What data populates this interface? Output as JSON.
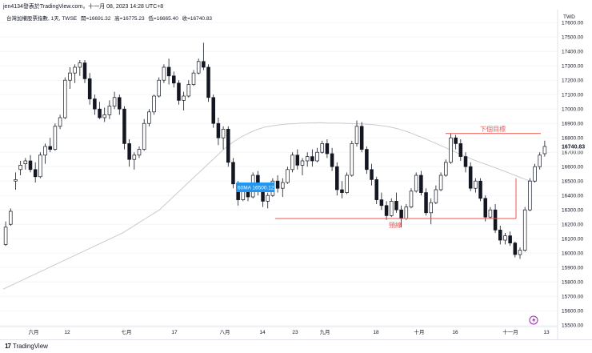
{
  "header": {
    "published_by": "jen4134發表於TradingView.com，十一月 08, 2023 14:28 UTC+8",
    "symbol_line": "台灣加權股票指數, 1天, TWSE",
    "ohlc_labels": {
      "open": "開=16691.32",
      "high": "高=16775.23",
      "low": "低=16665.40",
      "close": "收=16740.83"
    }
  },
  "footer": {
    "brand": "TradingView",
    "brand_mark": "17"
  },
  "chart_data": {
    "type": "candlestick",
    "currency": "TWD",
    "y_ticks": [
      15500,
      15600,
      15700,
      15800,
      15900,
      16000,
      16100,
      16200,
      16300,
      16400,
      16500,
      16600,
      16700,
      16800,
      16900,
      17000,
      17100,
      17200,
      17300,
      17400,
      17500,
      17600
    ],
    "y_tick_labels": [
      "15500.00",
      "15600.00",
      "15700.00",
      "15800.00",
      "15900.00",
      "16000.00",
      "16100.00",
      "16200.00",
      "16300.00",
      "16400.00",
      "16500.00",
      "16600.00",
      "16700.00",
      "16800.00",
      "16900.00",
      "17000.00",
      "17100.00",
      "17200.00",
      "17300.00",
      "17400.00",
      "17500.00",
      "17600.00"
    ],
    "ylim": [
      15490,
      17690
    ],
    "x_labels": [
      "六月",
      "12",
      "七月",
      "17",
      "八月",
      "14",
      "23",
      "九月",
      "18",
      "十月",
      "16",
      "十一月",
      "13"
    ],
    "last_price_label": "16740.83",
    "ma_line_label": "60MA 16500.12",
    "annotations": {
      "target_label": "下個目標",
      "target_price": 16830,
      "neckline_label": "頸線",
      "neckline_price": 16240
    },
    "ma60": [
      15750,
      15765,
      15780,
      15795,
      15810,
      15825,
      15840,
      15855,
      15870,
      15885,
      15900,
      15915,
      15930,
      15945,
      15960,
      15975,
      15990,
      16005,
      16020,
      16035,
      16050,
      16065,
      16080,
      16095,
      16110,
      16125,
      16140,
      16160,
      16180,
      16200,
      16220,
      16240,
      16260,
      16280,
      16300,
      16330,
      16360,
      16390,
      16420,
      16450,
      16480,
      16510,
      16540,
      16570,
      16600,
      16630,
      16660,
      16690,
      16720,
      16745,
      16770,
      16790,
      16810,
      16825,
      16840,
      16855,
      16865,
      16875,
      16880,
      16885,
      16890,
      16893,
      16896,
      16898,
      16900,
      16902,
      16903,
      16904,
      16904,
      16905,
      16904,
      16903,
      16903,
      16902,
      16901,
      16900,
      16899,
      16898,
      16897,
      16895,
      16893,
      16890,
      16886,
      16882,
      16876,
      16870,
      16862,
      16852,
      16842,
      16830,
      16818,
      16805,
      16792,
      16778,
      16764,
      16750,
      16736,
      16722,
      16708,
      16694,
      16680,
      16666,
      16652,
      16640,
      16628,
      16617,
      16606,
      16594,
      16582,
      16570,
      16558,
      16545,
      16532,
      16520,
      16508,
      16500,
      16500
    ],
    "candles": [
      {
        "o": 16060,
        "h": 16220,
        "l": 16050,
        "c": 16180
      },
      {
        "o": 16200,
        "h": 16310,
        "l": 16190,
        "c": 16290
      },
      {
        "o": 16500,
        "h": 16560,
        "l": 16440,
        "c": 16510
      },
      {
        "o": 16580,
        "h": 16640,
        "l": 16540,
        "c": 16610
      },
      {
        "o": 16620,
        "h": 16660,
        "l": 16580,
        "c": 16640
      },
      {
        "o": 16640,
        "h": 16680,
        "l": 16560,
        "c": 16580
      },
      {
        "o": 16580,
        "h": 16630,
        "l": 16490,
        "c": 16530
      },
      {
        "o": 16530,
        "h": 16700,
        "l": 16520,
        "c": 16680
      },
      {
        "o": 16680,
        "h": 16760,
        "l": 16620,
        "c": 16740
      },
      {
        "o": 16740,
        "h": 16800,
        "l": 16700,
        "c": 16720
      },
      {
        "o": 16720,
        "h": 16900,
        "l": 16710,
        "c": 16880
      },
      {
        "o": 16880,
        "h": 16960,
        "l": 16860,
        "c": 16940
      },
      {
        "o": 16940,
        "h": 17220,
        "l": 16930,
        "c": 17200
      },
      {
        "o": 17200,
        "h": 17290,
        "l": 17140,
        "c": 17250
      },
      {
        "o": 17250,
        "h": 17310,
        "l": 17180,
        "c": 17290
      },
      {
        "o": 17290,
        "h": 17340,
        "l": 17230,
        "c": 17320
      },
      {
        "o": 17320,
        "h": 17340,
        "l": 17180,
        "c": 17210
      },
      {
        "o": 17210,
        "h": 17250,
        "l": 17030,
        "c": 17070
      },
      {
        "o": 17070,
        "h": 17100,
        "l": 16960,
        "c": 17000
      },
      {
        "o": 17000,
        "h": 17050,
        "l": 16930,
        "c": 16940
      },
      {
        "o": 16940,
        "h": 17010,
        "l": 16910,
        "c": 16960
      },
      {
        "o": 16960,
        "h": 17060,
        "l": 16930,
        "c": 17020
      },
      {
        "o": 17020,
        "h": 17120,
        "l": 17000,
        "c": 17080
      },
      {
        "o": 17080,
        "h": 17100,
        "l": 16960,
        "c": 17000
      },
      {
        "o": 17000,
        "h": 17020,
        "l": 16720,
        "c": 16760
      },
      {
        "o": 16760,
        "h": 16790,
        "l": 16600,
        "c": 16650
      },
      {
        "o": 16650,
        "h": 16700,
        "l": 16580,
        "c": 16680
      },
      {
        "o": 16680,
        "h": 16740,
        "l": 16660,
        "c": 16720
      },
      {
        "o": 16720,
        "h": 16930,
        "l": 16710,
        "c": 16900
      },
      {
        "o": 16900,
        "h": 17000,
        "l": 16880,
        "c": 16980
      },
      {
        "o": 16980,
        "h": 17100,
        "l": 16960,
        "c": 17090
      },
      {
        "o": 17090,
        "h": 17220,
        "l": 17080,
        "c": 17200
      },
      {
        "o": 17200,
        "h": 17310,
        "l": 17180,
        "c": 17290
      },
      {
        "o": 17290,
        "h": 17350,
        "l": 17170,
        "c": 17230
      },
      {
        "o": 17230,
        "h": 17260,
        "l": 17150,
        "c": 17180
      },
      {
        "o": 17180,
        "h": 17200,
        "l": 17030,
        "c": 17060
      },
      {
        "o": 17060,
        "h": 17120,
        "l": 16990,
        "c": 17090
      },
      {
        "o": 17090,
        "h": 17200,
        "l": 17080,
        "c": 17170
      },
      {
        "o": 17170,
        "h": 17270,
        "l": 17160,
        "c": 17250
      },
      {
        "o": 17250,
        "h": 17350,
        "l": 17240,
        "c": 17330
      },
      {
        "o": 17330,
        "h": 17460,
        "l": 17270,
        "c": 17290
      },
      {
        "o": 17290,
        "h": 17310,
        "l": 17050,
        "c": 17080
      },
      {
        "o": 17080,
        "h": 17100,
        "l": 16870,
        "c": 16900
      },
      {
        "o": 16900,
        "h": 16940,
        "l": 16750,
        "c": 16800
      },
      {
        "o": 16800,
        "h": 16880,
        "l": 16720,
        "c": 16860
      },
      {
        "o": 16860,
        "h": 16880,
        "l": 16600,
        "c": 16630
      },
      {
        "o": 16630,
        "h": 16660,
        "l": 16450,
        "c": 16480
      },
      {
        "o": 16480,
        "h": 16500,
        "l": 16330,
        "c": 16370
      },
      {
        "o": 16370,
        "h": 16470,
        "l": 16360,
        "c": 16450
      },
      {
        "o": 16450,
        "h": 16480,
        "l": 16360,
        "c": 16390
      },
      {
        "o": 16390,
        "h": 16560,
        "l": 16380,
        "c": 16540
      },
      {
        "o": 16540,
        "h": 16570,
        "l": 16400,
        "c": 16430
      },
      {
        "o": 16430,
        "h": 16470,
        "l": 16320,
        "c": 16360
      },
      {
        "o": 16360,
        "h": 16420,
        "l": 16310,
        "c": 16400
      },
      {
        "o": 16400,
        "h": 16520,
        "l": 16390,
        "c": 16500
      },
      {
        "o": 16500,
        "h": 16540,
        "l": 16420,
        "c": 16450
      },
      {
        "o": 16450,
        "h": 16520,
        "l": 16390,
        "c": 16490
      },
      {
        "o": 16490,
        "h": 16600,
        "l": 16480,
        "c": 16580
      },
      {
        "o": 16580,
        "h": 16700,
        "l": 16560,
        "c": 16680
      },
      {
        "o": 16680,
        "h": 16720,
        "l": 16580,
        "c": 16610
      },
      {
        "o": 16610,
        "h": 16660,
        "l": 16540,
        "c": 16640
      },
      {
        "o": 16640,
        "h": 16700,
        "l": 16600,
        "c": 16670
      },
      {
        "o": 16670,
        "h": 16720,
        "l": 16600,
        "c": 16640
      },
      {
        "o": 16640,
        "h": 16730,
        "l": 16630,
        "c": 16700
      },
      {
        "o": 16700,
        "h": 16780,
        "l": 16690,
        "c": 16760
      },
      {
        "o": 16760,
        "h": 16790,
        "l": 16660,
        "c": 16690
      },
      {
        "o": 16690,
        "h": 16730,
        "l": 16570,
        "c": 16600
      },
      {
        "o": 16600,
        "h": 16630,
        "l": 16400,
        "c": 16440
      },
      {
        "o": 16440,
        "h": 16500,
        "l": 16380,
        "c": 16420
      },
      {
        "o": 16420,
        "h": 16560,
        "l": 16410,
        "c": 16540
      },
      {
        "o": 16540,
        "h": 16780,
        "l": 16530,
        "c": 16760
      },
      {
        "o": 16760,
        "h": 16920,
        "l": 16740,
        "c": 16880
      },
      {
        "o": 16880,
        "h": 16910,
        "l": 16700,
        "c": 16720
      },
      {
        "o": 16720,
        "h": 16740,
        "l": 16550,
        "c": 16580
      },
      {
        "o": 16580,
        "h": 16620,
        "l": 16470,
        "c": 16510
      },
      {
        "o": 16510,
        "h": 16530,
        "l": 16340,
        "c": 16370
      },
      {
        "o": 16370,
        "h": 16420,
        "l": 16300,
        "c": 16330
      },
      {
        "o": 16330,
        "h": 16360,
        "l": 16230,
        "c": 16260
      },
      {
        "o": 16260,
        "h": 16380,
        "l": 16250,
        "c": 16360
      },
      {
        "o": 16360,
        "h": 16420,
        "l": 16280,
        "c": 16300
      },
      {
        "o": 16300,
        "h": 16330,
        "l": 16180,
        "c": 16240
      },
      {
        "o": 16240,
        "h": 16340,
        "l": 16230,
        "c": 16320
      },
      {
        "o": 16320,
        "h": 16450,
        "l": 16310,
        "c": 16430
      },
      {
        "o": 16430,
        "h": 16560,
        "l": 16420,
        "c": 16540
      },
      {
        "o": 16540,
        "h": 16570,
        "l": 16400,
        "c": 16420
      },
      {
        "o": 16420,
        "h": 16450,
        "l": 16260,
        "c": 16280
      },
      {
        "o": 16280,
        "h": 16380,
        "l": 16200,
        "c": 16350
      },
      {
        "o": 16350,
        "h": 16470,
        "l": 16340,
        "c": 16440
      },
      {
        "o": 16440,
        "h": 16560,
        "l": 16430,
        "c": 16540
      },
      {
        "o": 16540,
        "h": 16650,
        "l": 16530,
        "c": 16630
      },
      {
        "o": 16630,
        "h": 16830,
        "l": 16620,
        "c": 16800
      },
      {
        "o": 16800,
        "h": 16820,
        "l": 16720,
        "c": 16760
      },
      {
        "o": 16760,
        "h": 16790,
        "l": 16640,
        "c": 16670
      },
      {
        "o": 16670,
        "h": 16700,
        "l": 16560,
        "c": 16600
      },
      {
        "o": 16600,
        "h": 16630,
        "l": 16430,
        "c": 16450
      },
      {
        "o": 16450,
        "h": 16520,
        "l": 16420,
        "c": 16500
      },
      {
        "o": 16500,
        "h": 16520,
        "l": 16360,
        "c": 16380
      },
      {
        "o": 16380,
        "h": 16400,
        "l": 16220,
        "c": 16250
      },
      {
        "o": 16250,
        "h": 16320,
        "l": 16240,
        "c": 16300
      },
      {
        "o": 16300,
        "h": 16340,
        "l": 16140,
        "c": 16160
      },
      {
        "o": 16160,
        "h": 16190,
        "l": 16060,
        "c": 16090
      },
      {
        "o": 16090,
        "h": 16140,
        "l": 16060,
        "c": 16120
      },
      {
        "o": 16120,
        "h": 16150,
        "l": 16050,
        "c": 16070
      },
      {
        "o": 16070,
        "h": 16080,
        "l": 15970,
        "c": 15990
      },
      {
        "o": 15990,
        "h": 16040,
        "l": 15960,
        "c": 16020
      },
      {
        "o": 16020,
        "h": 16320,
        "l": 16010,
        "c": 16300
      },
      {
        "o": 16300,
        "h": 16520,
        "l": 16290,
        "c": 16500
      },
      {
        "o": 16500,
        "h": 16620,
        "l": 16490,
        "c": 16600
      },
      {
        "o": 16600,
        "h": 16700,
        "l": 16580,
        "c": 16680
      },
      {
        "o": 16690,
        "h": 16780,
        "l": 16670,
        "c": 16740
      }
    ]
  }
}
